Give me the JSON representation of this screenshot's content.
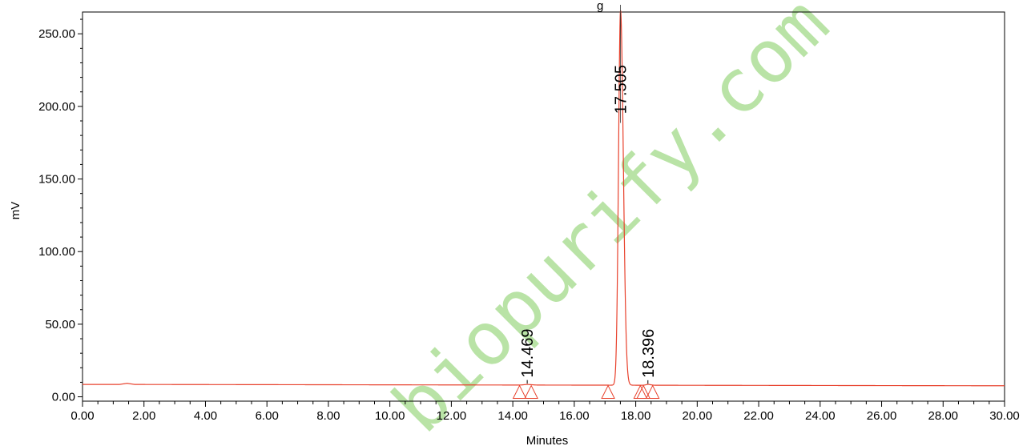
{
  "chart_data": {
    "type": "line",
    "title": "",
    "title_fragment": "g",
    "xlabel": "Minutes",
    "ylabel": "mV",
    "xlim": [
      0,
      30
    ],
    "ylim": [
      -3,
      265
    ],
    "x_ticks": [
      "0.00",
      "2.00",
      "4.00",
      "6.00",
      "8.00",
      "10.00",
      "12.00",
      "14.00",
      "16.00",
      "18.00",
      "20.00",
      "22.00",
      "24.00",
      "26.00",
      "28.00",
      "30.00"
    ],
    "y_ticks": [
      "0.00",
      "50.00",
      "100.00",
      "150.00",
      "200.00",
      "250.00"
    ],
    "grid": false,
    "series": [
      {
        "color": "#e8412c",
        "baseline": [
          [
            0,
            8.5
          ],
          [
            1.2,
            8.5
          ],
          [
            1.45,
            9.3
          ],
          [
            1.7,
            8.5
          ],
          [
            30,
            7.6
          ]
        ],
        "peaks": [
          {
            "rt": 14.469,
            "height": 0.4,
            "sigma": 0.1
          },
          {
            "rt": 17.505,
            "height": 258,
            "sigma": 0.065
          },
          {
            "rt": 18.396,
            "height": 0.6,
            "sigma": 0.06
          }
        ]
      }
    ],
    "peak_labels": [
      {
        "text": "14.469",
        "x": 14.469
      },
      {
        "text": "17.505",
        "x": 17.505
      },
      {
        "text": "18.396",
        "x": 18.396
      }
    ],
    "integration_markers": [
      14.22,
      14.6,
      17.1,
      18.15,
      18.25,
      18.55
    ],
    "marker_color": "#e8412c",
    "watermark": {
      "text": "biopurify.com",
      "color": "#b9e3a6"
    }
  }
}
